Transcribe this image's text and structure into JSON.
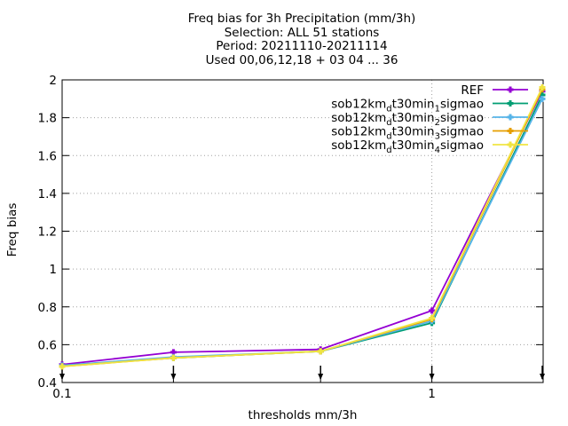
{
  "chart_data": {
    "type": "line",
    "title_lines": [
      "Freq bias  for 3h Precipitation (mm/3h)",
      "Selection: ALL     51 stations",
      "Period: 20211110-20211114",
      "Used 00,06,12,18 + 03 04 ... 36"
    ],
    "xlabel": "thresholds mm/3h",
    "ylabel": "Freq bias",
    "x_scale": "log",
    "xlim": [
      0.1,
      2
    ],
    "ylim": [
      0.4,
      2
    ],
    "xticks": [
      {
        "value": 0.1,
        "label": "0.1"
      },
      {
        "value": 1,
        "label": "1"
      }
    ],
    "x_minor_ticks": [
      0.2,
      0.5,
      2
    ],
    "yticks": [
      {
        "value": 0.4,
        "label": "0.4"
      },
      {
        "value": 0.6,
        "label": "0.6"
      },
      {
        "value": 0.8,
        "label": "0.8"
      },
      {
        "value": 1,
        "label": "1"
      },
      {
        "value": 1.2,
        "label": "1.2"
      },
      {
        "value": 1.4,
        "label": "1.4"
      },
      {
        "value": 1.6,
        "label": "1.6"
      },
      {
        "value": 1.8,
        "label": "1.8"
      },
      {
        "value": 2,
        "label": "2"
      }
    ],
    "grid": true,
    "legend_position": "top-right",
    "x": [
      0.1,
      0.2,
      0.5,
      1,
      2
    ],
    "series": [
      {
        "name": "REF",
        "sub": "",
        "color": "#9400d3",
        "values": [
          0.495,
          0.56,
          0.575,
          0.78,
          1.94
        ]
      },
      {
        "name": "sob12km_dt30min_1sigmao",
        "sub": "1",
        "color": "#009e73",
        "values": [
          0.49,
          0.53,
          0.565,
          0.715,
          1.92
        ]
      },
      {
        "name": "sob12km_dt30min_2sigmao",
        "sub": "2",
        "color": "#56b4e9",
        "values": [
          0.49,
          0.535,
          0.565,
          0.725,
          1.9
        ]
      },
      {
        "name": "sob12km_dt30min_3sigmao",
        "sub": "3",
        "color": "#e69f00",
        "values": [
          0.485,
          0.53,
          0.565,
          0.735,
          1.95
        ]
      },
      {
        "name": "sob12km_dt30min_4sigmao",
        "sub": "4",
        "color": "#f0e442",
        "values": [
          0.485,
          0.53,
          0.565,
          0.74,
          1.96
        ]
      }
    ],
    "legend_text": {
      "prefix": "sob12km",
      "dt_sub": "d",
      "middle": "t30min",
      "suffix": "sigmao"
    }
  }
}
